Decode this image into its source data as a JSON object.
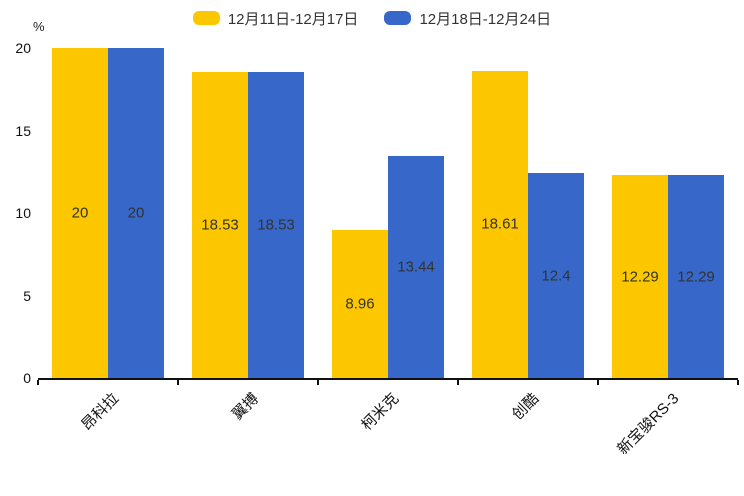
{
  "chart_data": {
    "type": "bar",
    "title": "",
    "ylabel": "%",
    "xlabel": "",
    "ylim": [
      0,
      20
    ],
    "y_ticks": [
      0,
      5,
      10,
      15,
      20
    ],
    "grid": false,
    "legend_position": "top",
    "value_labels": "inside-middle",
    "categories": [
      "昂科拉",
      "翼搏",
      "柯米克",
      "创酷",
      "新宝骏RS-3"
    ],
    "series": [
      {
        "name": "12月11日-12月17日",
        "color": "#FDC700",
        "values": [
          20,
          18.53,
          8.96,
          18.61,
          12.29
        ]
      },
      {
        "name": "12月18日-12月24日",
        "color": "#3667C9",
        "values": [
          20,
          18.53,
          13.44,
          12.4,
          12.29
        ]
      }
    ],
    "colors": {
      "axis": "#111111",
      "tick_text": "#111111",
      "value_text": "#333333",
      "legend_text": "#333333",
      "background": "#ffffff"
    }
  }
}
